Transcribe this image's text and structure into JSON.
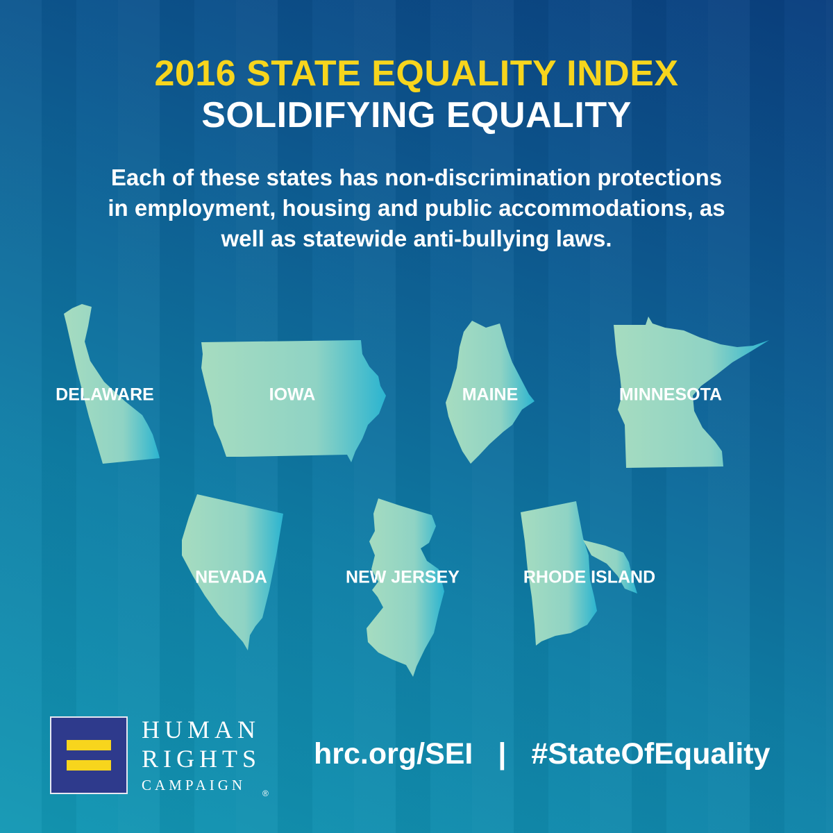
{
  "header": {
    "title": "2016 STATE EQUALITY INDEX",
    "subtitle": "SOLIDIFYING EQUALITY",
    "description": "Each of these states has non-discrimination protections in employment, housing and public accommodations, as well as statewide anti-bullying laws."
  },
  "states": [
    {
      "name": "DELAWARE",
      "shape": "delaware-shape"
    },
    {
      "name": "IOWA",
      "shape": "iowa-shape"
    },
    {
      "name": "MAINE",
      "shape": "maine-shape"
    },
    {
      "name": "MINNESOTA",
      "shape": "minnesota-shape"
    },
    {
      "name": "NEVADA",
      "shape": "nevada-shape"
    },
    {
      "name": "NEW JERSEY",
      "shape": "new-jersey-shape"
    },
    {
      "name": "RHODE ISLAND",
      "shape": "rhode-island-shape"
    }
  ],
  "brand": {
    "line1": "HUMAN",
    "line2": "RIGHTS",
    "line3": "CAMPAIGN",
    "registered": "®",
    "logo_color": "#2e3a8c",
    "equal_sign_color": "#f7d51d"
  },
  "footer": {
    "url": "hrc.org/SEI",
    "separator": "|",
    "hashtag": "#StateOfEquality"
  },
  "colors": {
    "title": "#f7d51d",
    "map_fill_light": "#a6dcc0",
    "map_fill_accent": "#2bb4d0"
  }
}
